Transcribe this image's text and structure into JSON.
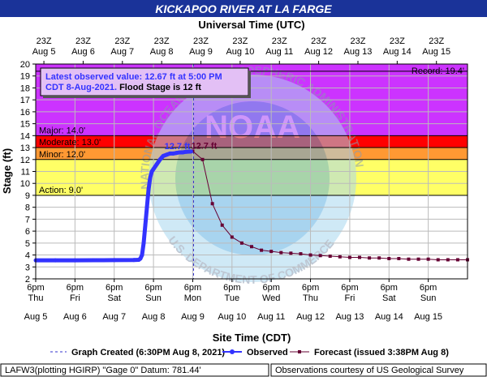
{
  "chart_data": {
    "type": "line",
    "title": "KICKAPOO RIVER AT LA FARGE",
    "top_axis_label": "Universal Time (UTC)",
    "bottom_axis_label": "Site Time (CDT)",
    "ylabel": "Stage (ft)",
    "ylim": [
      2,
      20
    ],
    "y_ticks": [
      2,
      3,
      4,
      5,
      6,
      7,
      8,
      9,
      10,
      11,
      12,
      13,
      14,
      15,
      16,
      17,
      18,
      19,
      20
    ],
    "xlim": [
      "2021-08-04T18:00",
      "2021-08-15T18:00"
    ],
    "grid": true,
    "top_ticks": [
      {
        "time": "23Z",
        "date": "Aug  5"
      },
      {
        "time": "23Z",
        "date": "Aug  6"
      },
      {
        "time": "23Z",
        "date": "Aug  7"
      },
      {
        "time": "23Z",
        "date": "Aug  8"
      },
      {
        "time": "23Z",
        "date": "Aug  9"
      },
      {
        "time": "23Z",
        "date": "Aug 10"
      },
      {
        "time": "23Z",
        "date": "Aug 11"
      },
      {
        "time": "23Z",
        "date": "Aug 12"
      },
      {
        "time": "23Z",
        "date": "Aug 13"
      },
      {
        "time": "23Z",
        "date": "Aug 14"
      },
      {
        "time": "23Z",
        "date": "Aug 15"
      }
    ],
    "bottom_ticks": [
      {
        "time": "6pm",
        "day": "Thu",
        "date": "Aug 5"
      },
      {
        "time": "6pm",
        "day": "Fri",
        "date": "Aug 6"
      },
      {
        "time": "6pm",
        "day": "Sat",
        "date": "Aug 7"
      },
      {
        "time": "6pm",
        "day": "Sun",
        "date": "Aug 8"
      },
      {
        "time": "6pm",
        "day": "Mon",
        "date": "Aug 9"
      },
      {
        "time": "6pm",
        "day": "Tue",
        "date": "Aug 10"
      },
      {
        "time": "6pm",
        "day": "Wed",
        "date": "Aug 11"
      },
      {
        "time": "6pm",
        "day": "Thu",
        "date": "Aug 12"
      },
      {
        "time": "6pm",
        "day": "Fri",
        "date": "Aug 13"
      },
      {
        "time": "6pm",
        "day": "Sat",
        "date": "Aug 14"
      },
      {
        "time": "6pm",
        "day": "Sun",
        "date": "Aug 15"
      }
    ],
    "bands": [
      {
        "name": "Action",
        "from": 9,
        "to": 12,
        "color": "#ffff66",
        "label": "Action: 9.0'"
      },
      {
        "name": "Minor",
        "from": 12,
        "to": 13,
        "color": "#ff9933",
        "label": "Minor: 12.0'"
      },
      {
        "name": "Moderate",
        "from": 13,
        "to": 14,
        "color": "#ff0000",
        "label": "Moderate: 13.0'"
      },
      {
        "name": "Major",
        "from": 14,
        "to": 20,
        "color": "#cc33ff",
        "label": "Major: 14.0'"
      }
    ],
    "record": {
      "value": 19.4,
      "label": "Record: 19.4'"
    },
    "info_box": {
      "line1": "Latest observed value: 12.67 ft at 5:00 PM",
      "line2a": "CDT 8-Aug-2021.",
      "line2b": " Flood Stage is 12 ft"
    },
    "peak_labels": {
      "observed": "12.7 ft",
      "forecast": "12.7 ft"
    },
    "series": [
      {
        "name": "Observed",
        "color": "#3333ff",
        "points": [
          [
            "2021-08-04T18:00",
            3.55
          ],
          [
            "2021-08-05T06:00",
            3.55
          ],
          [
            "2021-08-05T18:00",
            3.55
          ],
          [
            "2021-08-06T06:00",
            3.56
          ],
          [
            "2021-08-06T18:00",
            3.57
          ],
          [
            "2021-08-07T06:00",
            3.58
          ],
          [
            "2021-08-07T09:00",
            3.6
          ],
          [
            "2021-08-07T10:00",
            3.7
          ],
          [
            "2021-08-07T11:00",
            4.0
          ],
          [
            "2021-08-07T12:00",
            5.0
          ],
          [
            "2021-08-07T13:00",
            6.5
          ],
          [
            "2021-08-07T14:00",
            8.0
          ],
          [
            "2021-08-07T15:00",
            9.5
          ],
          [
            "2021-08-07T16:00",
            10.5
          ],
          [
            "2021-08-07T17:00",
            11.0
          ],
          [
            "2021-08-07T18:00",
            11.2
          ],
          [
            "2021-08-07T19:00",
            11.4
          ],
          [
            "2021-08-07T20:00",
            11.6
          ],
          [
            "2021-08-07T21:00",
            11.8
          ],
          [
            "2021-08-07T22:00",
            12.0
          ],
          [
            "2021-08-07T23:00",
            12.15
          ],
          [
            "2021-08-08T00:00",
            12.3
          ],
          [
            "2021-08-08T02:00",
            12.4
          ],
          [
            "2021-08-08T04:00",
            12.5
          ],
          [
            "2021-08-08T06:00",
            12.5
          ],
          [
            "2021-08-08T08:00",
            12.55
          ],
          [
            "2021-08-08T10:00",
            12.6
          ],
          [
            "2021-08-08T12:00",
            12.6
          ],
          [
            "2021-08-08T14:00",
            12.65
          ],
          [
            "2021-08-08T17:00",
            12.67
          ]
        ]
      },
      {
        "name": "Forecast (issued 3:38PM Aug 8)",
        "color": "#660033",
        "points": [
          [
            "2021-08-08T18:00",
            12.7
          ],
          [
            "2021-08-09T00:00",
            12.0
          ],
          [
            "2021-08-09T06:00",
            8.3
          ],
          [
            "2021-08-09T12:00",
            6.5
          ],
          [
            "2021-08-09T18:00",
            5.5
          ],
          [
            "2021-08-10T00:00",
            5.0
          ],
          [
            "2021-08-10T06:00",
            4.7
          ],
          [
            "2021-08-10T12:00",
            4.4
          ],
          [
            "2021-08-10T18:00",
            4.3
          ],
          [
            "2021-08-11T00:00",
            4.2
          ],
          [
            "2021-08-11T06:00",
            4.15
          ],
          [
            "2021-08-11T12:00",
            4.1
          ],
          [
            "2021-08-11T18:00",
            4.0
          ],
          [
            "2021-08-12T00:00",
            3.95
          ],
          [
            "2021-08-12T06:00",
            3.9
          ],
          [
            "2021-08-12T12:00",
            3.85
          ],
          [
            "2021-08-12T18:00",
            3.8
          ],
          [
            "2021-08-13T00:00",
            3.8
          ],
          [
            "2021-08-13T06:00",
            3.75
          ],
          [
            "2021-08-13T12:00",
            3.75
          ],
          [
            "2021-08-13T18:00",
            3.7
          ],
          [
            "2021-08-14T00:00",
            3.7
          ],
          [
            "2021-08-14T06:00",
            3.65
          ],
          [
            "2021-08-14T12:00",
            3.65
          ],
          [
            "2021-08-14T18:00",
            3.65
          ],
          [
            "2021-08-15T00:00",
            3.6
          ],
          [
            "2021-08-15T06:00",
            3.6
          ],
          [
            "2021-08-15T12:00",
            3.6
          ],
          [
            "2021-08-15T18:00",
            3.6
          ]
        ]
      }
    ],
    "graph_created": {
      "time": "2021-08-08T18:30",
      "label": "Graph Created (6:30PM Aug 8, 2021)"
    },
    "legend": {
      "graph_created": "Graph Created (6:30PM Aug 8, 2021)",
      "observed": "Observed",
      "forecast": "Forecast (issued 3:38PM Aug 8)"
    },
    "footer": {
      "left": "LAFW3(plotting HGIRP) \"Gage 0\" Datum: 781.44'",
      "right": "Observations courtesy of US Geological Survey"
    },
    "watermark": {
      "text1": "NATIONAL OCEANIC AND ATMOSPHERIC ADMINISTRATION",
      "text2": "U.S. DEPARTMENT OF COMMERCE",
      "center": "NOAA"
    },
    "colors": {
      "title_bg": "#1a3399",
      "observed": "#3333ff",
      "forecast": "#660033"
    }
  }
}
